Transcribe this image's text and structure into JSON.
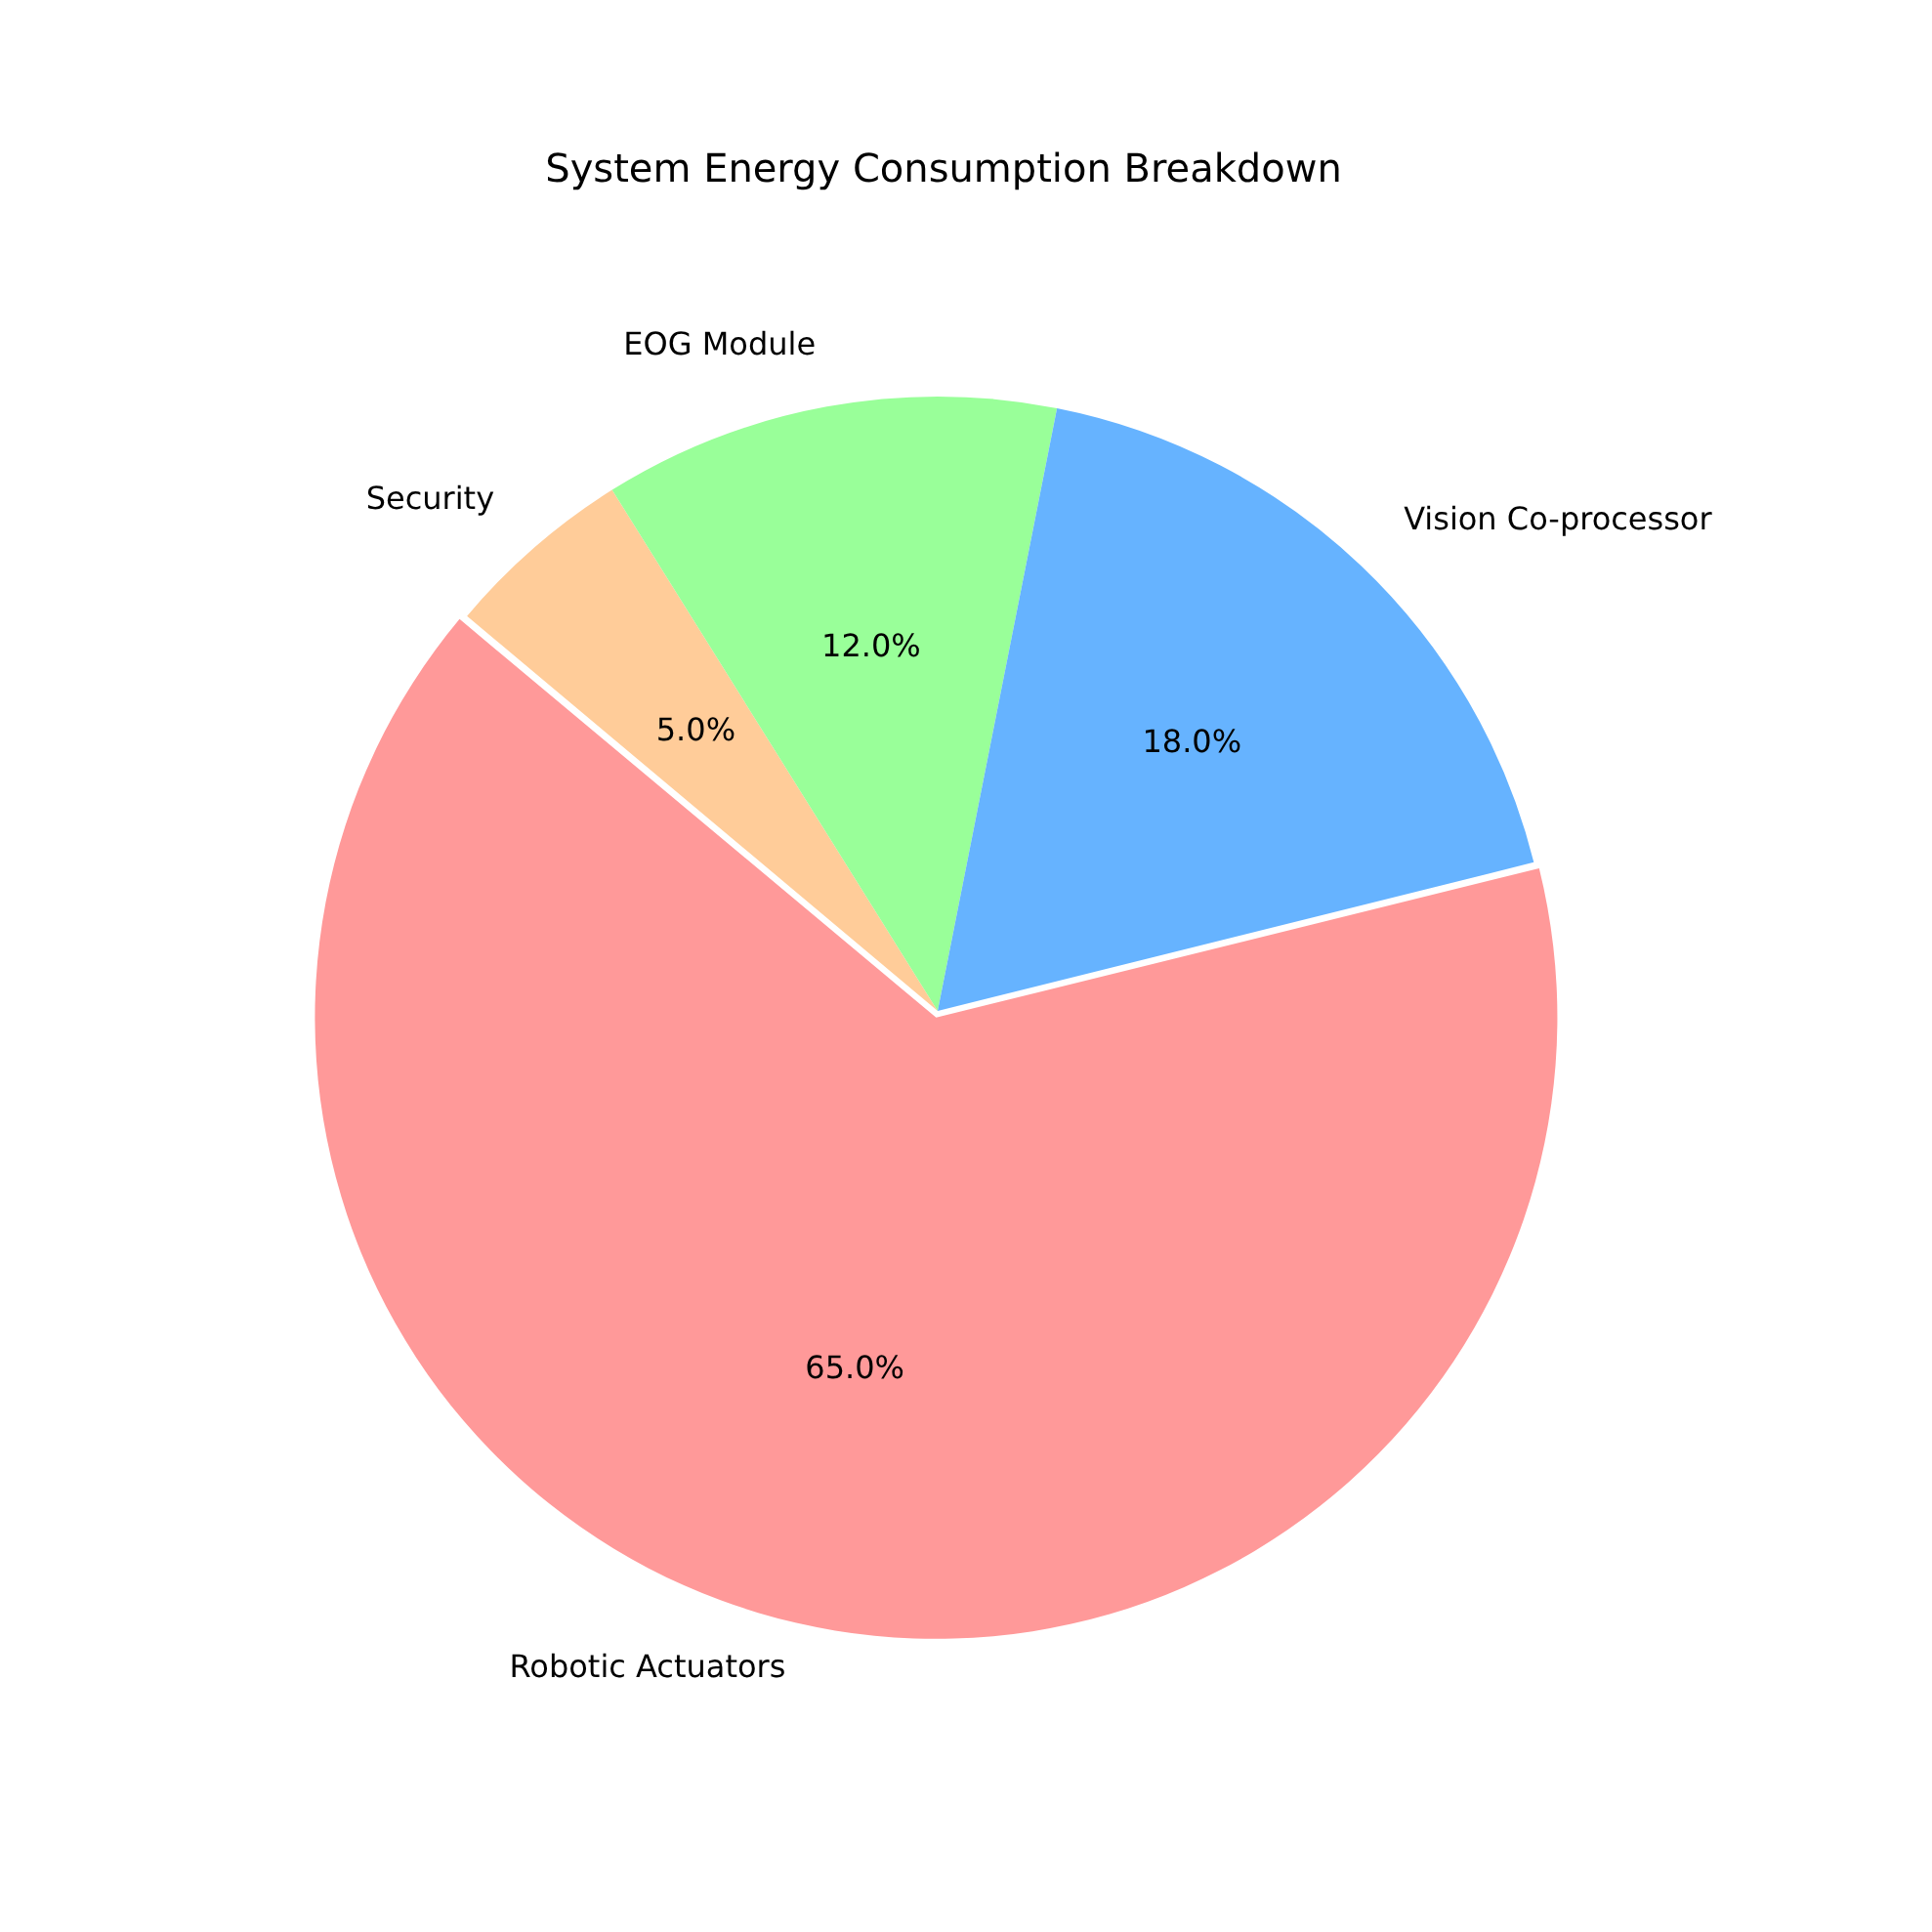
{
  "chart_data": {
    "type": "pie",
    "title": "System Energy Consumption Breakdown",
    "categories": [
      "Robotic Actuators",
      "Security",
      "EOG Module",
      "Vision Co-processor"
    ],
    "values": [
      65,
      5,
      12,
      18
    ],
    "colors": [
      "#ff9999",
      "#ffcc99",
      "#99ff99",
      "#66b3ff"
    ],
    "value_labels": [
      "65.0%",
      "5.0%",
      "12.0%",
      "18.0%"
    ]
  }
}
